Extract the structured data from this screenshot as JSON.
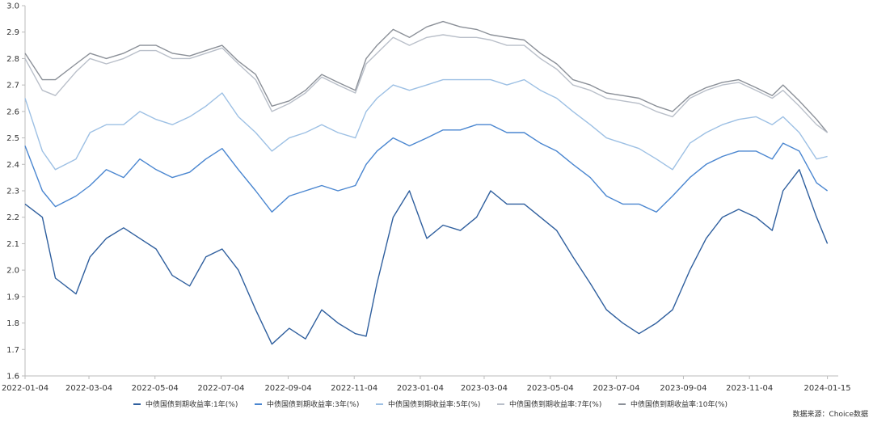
{
  "chart_data": {
    "type": "line",
    "title": "",
    "xlabel": "",
    "ylabel": "",
    "ylim": [
      1.6,
      3.0
    ],
    "yticks": [
      "3.0",
      "2.9",
      "2.8",
      "2.7",
      "2.6",
      "2.5",
      "2.4",
      "2.3",
      "2.2",
      "2.1",
      "2.0",
      "1.9",
      "1.8",
      "1.7",
      "1.6"
    ],
    "xticks": [
      "2022-01-04",
      "2022-03-04",
      "2022-05-04",
      "2022-07-04",
      "2022-09-04",
      "2022-11-04",
      "2023-01-04",
      "2023-03-04",
      "2023-05-04",
      "2023-07-04",
      "2023-09-04",
      "2023-11-04",
      "2024-01-15"
    ],
    "xrange": [
      "2022-01-04",
      "2024-01-25"
    ],
    "grid": false,
    "legend_position": "bottom",
    "x": [
      "2022-01-04",
      "2022-01-20",
      "2022-02-01",
      "2022-02-20",
      "2022-03-05",
      "2022-03-20",
      "2022-04-05",
      "2022-04-20",
      "2022-05-05",
      "2022-05-20",
      "2022-06-05",
      "2022-06-20",
      "2022-07-05",
      "2022-07-20",
      "2022-08-05",
      "2022-08-20",
      "2022-09-05",
      "2022-09-20",
      "2022-10-05",
      "2022-10-20",
      "2022-11-05",
      "2022-11-15",
      "2022-11-25",
      "2022-12-10",
      "2022-12-25",
      "2023-01-10",
      "2023-01-25",
      "2023-02-10",
      "2023-02-25",
      "2023-03-10",
      "2023-03-25",
      "2023-04-10",
      "2023-04-25",
      "2023-05-10",
      "2023-05-25",
      "2023-06-10",
      "2023-06-25",
      "2023-07-10",
      "2023-07-25",
      "2023-08-10",
      "2023-08-25",
      "2023-09-10",
      "2023-09-25",
      "2023-10-10",
      "2023-10-25",
      "2023-11-10",
      "2023-11-25",
      "2023-12-05",
      "2023-12-20",
      "2024-01-05",
      "2024-01-15"
    ],
    "series": [
      {
        "name": "中债国债到期收益率:1年(%)",
        "color": "#2f5f9e",
        "values": [
          2.25,
          2.2,
          1.97,
          1.91,
          2.05,
          2.12,
          2.16,
          2.12,
          2.08,
          1.98,
          1.94,
          2.05,
          2.08,
          2.0,
          1.85,
          1.72,
          1.78,
          1.74,
          1.85,
          1.8,
          1.76,
          1.75,
          1.95,
          2.2,
          2.3,
          2.12,
          2.17,
          2.15,
          2.2,
          2.3,
          2.25,
          2.25,
          2.2,
          2.15,
          2.05,
          1.95,
          1.85,
          1.8,
          1.76,
          1.8,
          1.85,
          2.0,
          2.12,
          2.2,
          2.23,
          2.2,
          2.15,
          2.3,
          2.38,
          2.2,
          2.1
        ]
      },
      {
        "name": "中债国债到期收益率:3年(%)",
        "color": "#4a86d0",
        "values": [
          2.47,
          2.3,
          2.24,
          2.28,
          2.32,
          2.38,
          2.35,
          2.42,
          2.38,
          2.35,
          2.37,
          2.42,
          2.46,
          2.38,
          2.3,
          2.22,
          2.28,
          2.3,
          2.32,
          2.3,
          2.32,
          2.4,
          2.45,
          2.5,
          2.47,
          2.5,
          2.53,
          2.53,
          2.55,
          2.55,
          2.52,
          2.52,
          2.48,
          2.45,
          2.4,
          2.35,
          2.28,
          2.25,
          2.25,
          2.22,
          2.28,
          2.35,
          2.4,
          2.43,
          2.45,
          2.45,
          2.42,
          2.48,
          2.45,
          2.33,
          2.3
        ]
      },
      {
        "name": "中债国债到期收益率:5年(%)",
        "color": "#9dc0e4",
        "values": [
          2.65,
          2.45,
          2.38,
          2.42,
          2.52,
          2.55,
          2.55,
          2.6,
          2.57,
          2.55,
          2.58,
          2.62,
          2.67,
          2.58,
          2.52,
          2.45,
          2.5,
          2.52,
          2.55,
          2.52,
          2.5,
          2.6,
          2.65,
          2.7,
          2.68,
          2.7,
          2.72,
          2.72,
          2.72,
          2.72,
          2.7,
          2.72,
          2.68,
          2.65,
          2.6,
          2.55,
          2.5,
          2.48,
          2.46,
          2.42,
          2.38,
          2.48,
          2.52,
          2.55,
          2.57,
          2.58,
          2.55,
          2.58,
          2.52,
          2.42,
          2.43
        ]
      },
      {
        "name": "中债国债到期收益率:7年(%)",
        "color": "#b9bfc9",
        "values": [
          2.8,
          2.68,
          2.66,
          2.75,
          2.8,
          2.78,
          2.8,
          2.83,
          2.83,
          2.8,
          2.8,
          2.82,
          2.84,
          2.78,
          2.72,
          2.6,
          2.63,
          2.67,
          2.73,
          2.7,
          2.67,
          2.78,
          2.82,
          2.88,
          2.85,
          2.88,
          2.89,
          2.88,
          2.88,
          2.87,
          2.85,
          2.85,
          2.8,
          2.76,
          2.7,
          2.68,
          2.65,
          2.64,
          2.63,
          2.6,
          2.58,
          2.65,
          2.68,
          2.7,
          2.71,
          2.68,
          2.65,
          2.68,
          2.62,
          2.55,
          2.52
        ]
      },
      {
        "name": "中债国债到期收益率:10年(%)",
        "color": "#8b9098",
        "values": [
          2.82,
          2.72,
          2.72,
          2.78,
          2.82,
          2.8,
          2.82,
          2.85,
          2.85,
          2.82,
          2.81,
          2.83,
          2.85,
          2.79,
          2.74,
          2.62,
          2.64,
          2.68,
          2.74,
          2.71,
          2.68,
          2.8,
          2.85,
          2.91,
          2.88,
          2.92,
          2.94,
          2.92,
          2.91,
          2.89,
          2.88,
          2.87,
          2.82,
          2.78,
          2.72,
          2.7,
          2.67,
          2.66,
          2.65,
          2.62,
          2.6,
          2.66,
          2.69,
          2.71,
          2.72,
          2.69,
          2.66,
          2.7,
          2.64,
          2.57,
          2.52
        ]
      }
    ]
  },
  "source": "数据来源：Choice数据"
}
